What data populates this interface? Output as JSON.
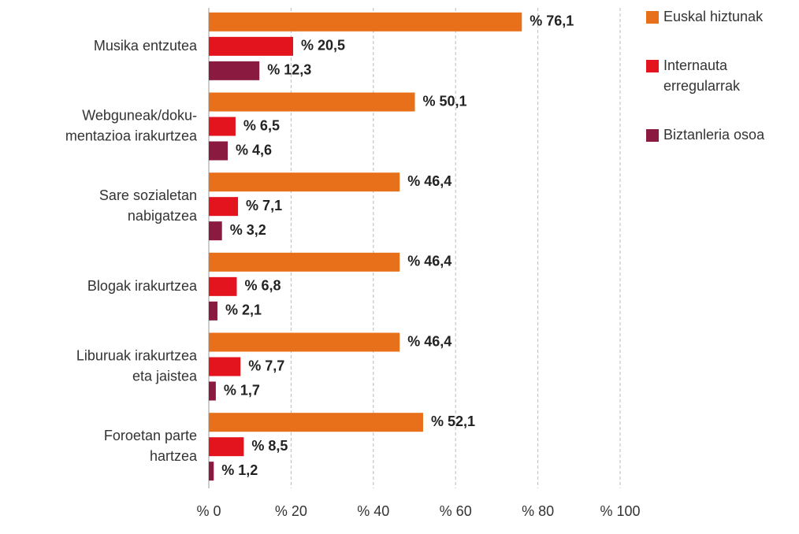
{
  "chart_data": {
    "type": "bar",
    "orientation": "horizontal",
    "categories": [
      "Musika entzutea",
      "Webguneak/doku-\nmentazioa irakurtzea",
      "Sare sozialetan\nnabigatzea",
      "Blogak irakurtzea",
      "Liburuak irakurtzea\neta jaistea",
      "Foroetan parte\nhartzea"
    ],
    "series": [
      {
        "name": "Euskal hiztunak",
        "color": "#e8701a",
        "values": [
          76.1,
          50.1,
          46.4,
          46.4,
          46.4,
          52.1
        ],
        "value_labels": [
          "% 76,1",
          "% 50,1",
          "% 46,4",
          "% 46,4",
          "% 46,4",
          "% 52,1"
        ]
      },
      {
        "name": "Internauta\nerregularrak",
        "color": "#e3141e",
        "values": [
          20.5,
          6.5,
          7.1,
          6.8,
          7.7,
          8.5
        ],
        "value_labels": [
          "% 20,5",
          "% 6,5",
          "% 7,1",
          "% 6,8",
          "% 7,7",
          "% 8,5"
        ]
      },
      {
        "name": "Biztanleria osoa",
        "color": "#8b1a40",
        "values": [
          12.3,
          4.6,
          3.2,
          2.1,
          1.7,
          1.2
        ],
        "value_labels": [
          "% 12,3",
          "% 4,6",
          "% 3,2",
          "% 2,1",
          "% 1,7",
          "% 1,2"
        ]
      }
    ],
    "xlim": [
      0,
      100
    ],
    "xticks": [
      {
        "value": 0,
        "label": "% 0"
      },
      {
        "value": 20,
        "label": "% 20"
      },
      {
        "value": 40,
        "label": "% 40"
      },
      {
        "value": 60,
        "label": "% 60"
      },
      {
        "value": 80,
        "label": "% 80"
      },
      {
        "value": 100,
        "label": "% 100"
      }
    ],
    "grid": true,
    "legend": "right"
  }
}
